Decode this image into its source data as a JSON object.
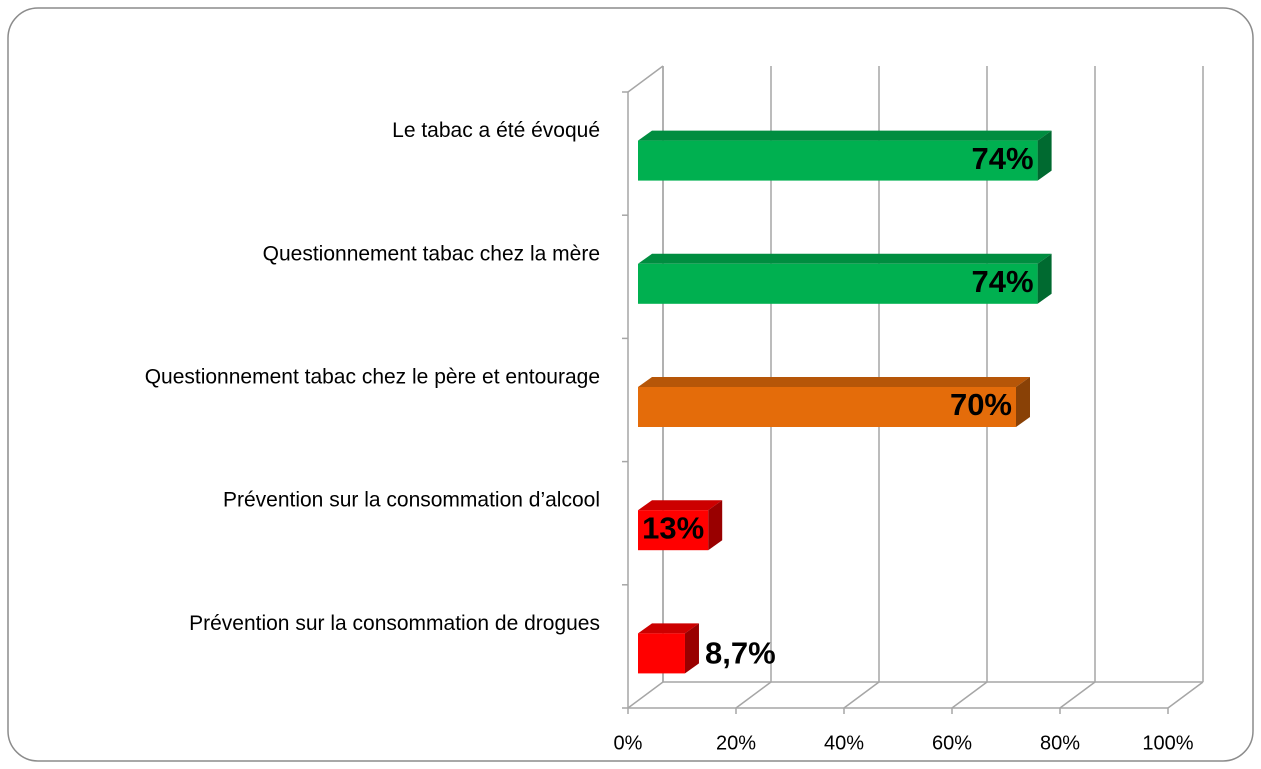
{
  "chart_data": {
    "type": "bar3d_horizontal",
    "categories": [
      "Le tabac a été évoqué",
      "Questionnement tabac chez la mère",
      "Questionnement tabac chez le père et entourage",
      "Prévention sur la consommation d’alcool",
      "Prévention sur la consommation de drogues"
    ],
    "values": [
      74,
      74,
      70,
      13,
      8.7
    ],
    "value_labels": [
      "74%",
      "74%",
      "70%",
      "13%",
      "8,7%"
    ],
    "colors": [
      "#00b050",
      "#00b050",
      "#e46c0a",
      "#ff0000",
      "#ff0000"
    ],
    "xlim": [
      0,
      100
    ],
    "xticks": [
      {
        "value": 0,
        "label": "0%"
      },
      {
        "value": 20,
        "label": "20%"
      },
      {
        "value": 40,
        "label": "40%"
      },
      {
        "value": 60,
        "label": "60%"
      },
      {
        "value": 80,
        "label": "80%"
      },
      {
        "value": 100,
        "label": "100%"
      }
    ],
    "grid": true
  }
}
